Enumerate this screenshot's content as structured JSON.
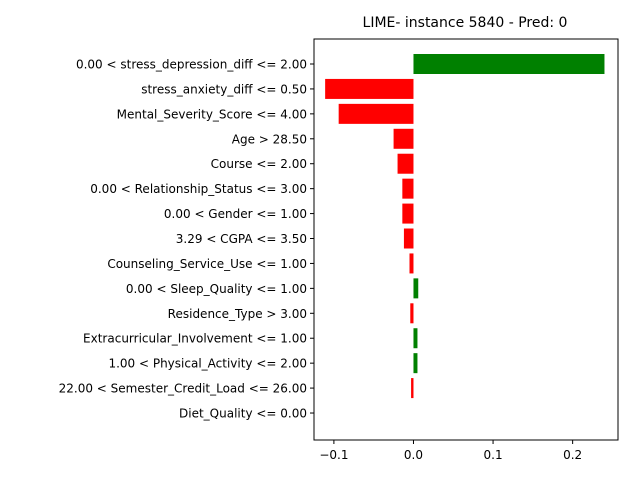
{
  "chart_data": {
    "type": "bar",
    "orientation": "horizontal",
    "title": "LIME- instance 5840 - Pred: 0",
    "xlabel": "",
    "ylabel": "",
    "xlim": [
      -0.125,
      0.257
    ],
    "xticks": [
      -0.1,
      0.0,
      0.1,
      0.2
    ],
    "xtick_labels": [
      "−0.1",
      "0.0",
      "0.1",
      "0.2"
    ],
    "positive_color": "#008000",
    "negative_color": "#ff0000",
    "grid": false,
    "legend": "none",
    "categories": [
      "0.00 < stress_depression_diff <= 2.00",
      "stress_anxiety_diff <= 0.50",
      "Mental_Severity_Score <= 4.00",
      "Age > 28.50",
      "Course <= 2.00",
      "0.00 < Relationship_Status <= 3.00",
      "0.00 < Gender <= 1.00",
      "3.29 < CGPA <= 3.50",
      "Counseling_Service_Use <= 1.00",
      "0.00 < Sleep_Quality <= 1.00",
      "Residence_Type > 3.00",
      "Extracurricular_Involvement <= 1.00",
      "1.00 < Physical_Activity <= 2.00",
      "22.00 < Semester_Credit_Load <= 26.00",
      "Diet_Quality <= 0.00"
    ],
    "values": [
      0.24,
      -0.111,
      -0.094,
      -0.025,
      -0.02,
      -0.014,
      -0.014,
      -0.012,
      -0.005,
      0.006,
      -0.004,
      0.005,
      0.005,
      -0.003,
      0.0
    ]
  }
}
